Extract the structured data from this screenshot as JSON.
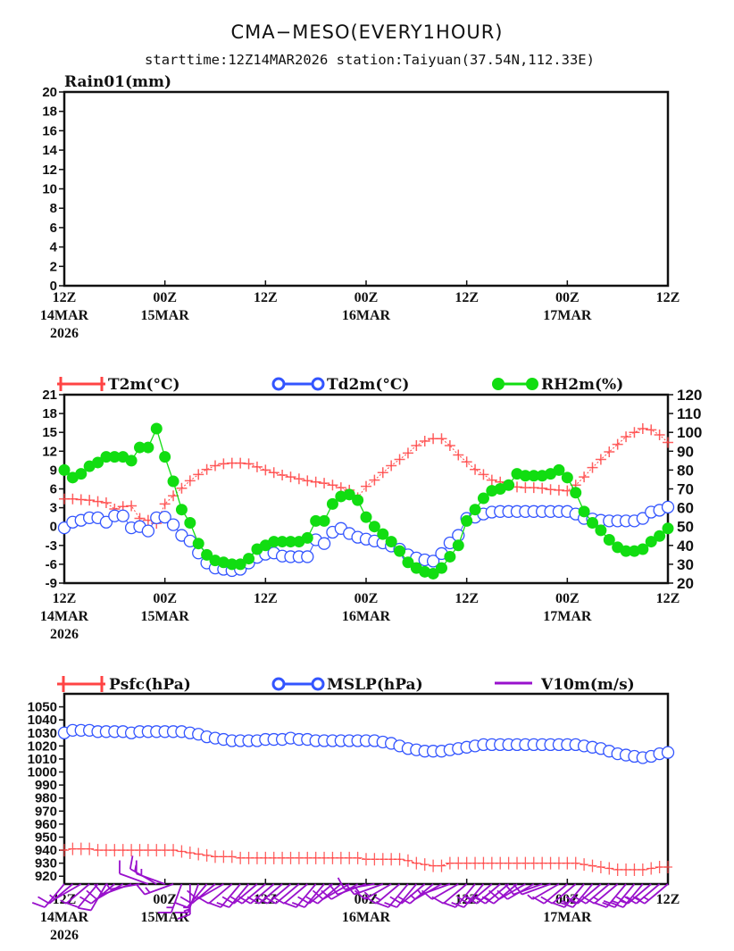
{
  "header": {
    "title": "CMA−MESO(EVERY1HOUR)",
    "subtitle": "starttime:12Z14MAR2026   station:Taiyuan(37.54N,112.33E)"
  },
  "colors": {
    "t2m": "#ff4444",
    "td2m": "#3355ff",
    "rh2m": "#11dd11",
    "psfc": "#ff4444",
    "mslp": "#3355ff",
    "wind": "#9911cc"
  },
  "chart_data": [
    {
      "type": "line",
      "title": "Rain01(mm)",
      "hours": 72,
      "ylim": [
        0,
        20
      ],
      "yticks": [
        "0",
        "2",
        "4",
        "6",
        "8",
        "10",
        "12",
        "14",
        "16",
        "18",
        "20"
      ],
      "x_ticks": [
        [
          "12Z",
          "14MAR",
          "2026"
        ],
        [
          "00Z",
          "15MAR",
          ""
        ],
        [
          "12Z",
          "",
          ""
        ],
        [
          "00Z",
          "16MAR",
          ""
        ],
        [
          "12Z",
          "",
          ""
        ],
        [
          "00Z",
          "17MAR",
          ""
        ],
        [
          "12Z",
          "",
          ""
        ]
      ],
      "series": []
    },
    {
      "type": "line",
      "hours": 72,
      "ylim": [
        -9,
        21
      ],
      "yticks": [
        "-9",
        "-6",
        "-3",
        "0",
        "3",
        "6",
        "9",
        "12",
        "15",
        "18",
        "21"
      ],
      "ylim_right": [
        20,
        120
      ],
      "yticks_right": [
        "20",
        "30",
        "40",
        "50",
        "60",
        "70",
        "80",
        "90",
        "100",
        "110",
        "120"
      ],
      "x_ticks": [
        [
          "12Z",
          "14MAR",
          "2026"
        ],
        [
          "00Z",
          "15MAR",
          ""
        ],
        [
          "12Z",
          "",
          ""
        ],
        [
          "00Z",
          "16MAR",
          ""
        ],
        [
          "12Z",
          "",
          ""
        ],
        [
          "00Z",
          "17MAR",
          ""
        ],
        [
          "12Z",
          "",
          ""
        ]
      ],
      "series": [
        {
          "name": "T2m(°C)",
          "axis": "left",
          "marker": "plus",
          "values": [
            4.4,
            4.4,
            4.3,
            4.2,
            4.0,
            3.8,
            2.8,
            3.2,
            3.3,
            1.3,
            1.0,
            0.5,
            3.6,
            4.9,
            6.1,
            7.3,
            8.3,
            9.1,
            9.7,
            10.0,
            10.1,
            10.1,
            10.0,
            9.5,
            9.0,
            8.6,
            8.2,
            7.9,
            7.6,
            7.3,
            7.1,
            6.9,
            6.6,
            6.2,
            5.8,
            4.6,
            6.4,
            7.4,
            8.6,
            9.7,
            10.7,
            11.7,
            12.9,
            13.6,
            14.0,
            14.0,
            12.9,
            11.4,
            10.3,
            9.1,
            8.3,
            7.4,
            7.1,
            6.6,
            6.3,
            6.2,
            6.2,
            6.1,
            5.9,
            5.8,
            5.7,
            6.6,
            7.9,
            9.4,
            10.7,
            11.9,
            13.1,
            14.3,
            15.0,
            15.6,
            15.4,
            14.6,
            13.4
          ]
        },
        {
          "name": "Td2m(°C)",
          "axis": "left",
          "marker": "circle",
          "values": [
            -0.2,
            0.7,
            1.0,
            1.4,
            1.4,
            0.7,
            1.7,
            1.7,
            -0.2,
            0.0,
            -0.7,
            1.4,
            1.5,
            0.3,
            -1.4,
            -2.3,
            -4.2,
            -5.8,
            -6.6,
            -6.8,
            -7.0,
            -6.8,
            -5.8,
            -4.9,
            -4.4,
            -4.2,
            -4.7,
            -4.8,
            -4.8,
            -4.8,
            -2.1,
            -2.7,
            -0.9,
            -0.3,
            -1.1,
            -1.7,
            -2.0,
            -2.3,
            -2.6,
            -3.1,
            -3.6,
            -4.5,
            -5.0,
            -5.3,
            -5.5,
            -4.3,
            -2.6,
            -1.4,
            1.3,
            1.5,
            2.0,
            2.3,
            2.4,
            2.4,
            2.4,
            2.4,
            2.4,
            2.4,
            2.4,
            2.4,
            2.4,
            2.0,
            1.3,
            1.2,
            1.0,
            0.9,
            0.9,
            0.9,
            0.9,
            1.3,
            2.3,
            2.6,
            3.1
          ]
        },
        {
          "name": "RH2m(%)",
          "axis": "right",
          "marker": "dot",
          "values": [
            80,
            76,
            78,
            82,
            84,
            87,
            87,
            87,
            85,
            92,
            92,
            102,
            87,
            74,
            59,
            52,
            41,
            35,
            32,
            31,
            30,
            30,
            33,
            38,
            40,
            42,
            42,
            42,
            42,
            44,
            53,
            53,
            62,
            66,
            67,
            64,
            55,
            50,
            46,
            42,
            37,
            31,
            28,
            26,
            25,
            28,
            34,
            40,
            53,
            59,
            65,
            69,
            70,
            72,
            78,
            77,
            77,
            77,
            78,
            80,
            76,
            68,
            58,
            52,
            48,
            43,
            39,
            37,
            37,
            38,
            42,
            45,
            49
          ]
        }
      ]
    },
    {
      "type": "line",
      "hours": 72,
      "ylim": [
        914,
        1060
      ],
      "yticks": [
        "920",
        "930",
        "940",
        "950",
        "960",
        "970",
        "980",
        "990",
        "1000",
        "1010",
        "1020",
        "1030",
        "1040",
        "1050"
      ],
      "x_ticks": [
        [
          "12Z",
          "14MAR",
          "2026"
        ],
        [
          "00Z",
          "15MAR",
          ""
        ],
        [
          "12Z",
          "",
          ""
        ],
        [
          "00Z",
          "16MAR",
          ""
        ],
        [
          "12Z",
          "",
          ""
        ],
        [
          "00Z",
          "17MAR",
          ""
        ],
        [
          "12Z",
          "",
          ""
        ]
      ],
      "series": [
        {
          "name": "Psfc(hPa)",
          "marker": "plus",
          "values": [
            940,
            941,
            941,
            941,
            940,
            940,
            940,
            940,
            940,
            940,
            940,
            940,
            940,
            940,
            939,
            938,
            937,
            936,
            935,
            935,
            935,
            934,
            934,
            934,
            934,
            934,
            934,
            934,
            934,
            934,
            934,
            934,
            934,
            934,
            934,
            934,
            933,
            933,
            933,
            933,
            933,
            932,
            930,
            929,
            928,
            928,
            930,
            930,
            930,
            930,
            930,
            930,
            930,
            930,
            930,
            930,
            930,
            930,
            930,
            930,
            930,
            930,
            929,
            928,
            927,
            926,
            925,
            925,
            925,
            925,
            926,
            927,
            927
          ]
        },
        {
          "name": "MSLP(hPa)",
          "marker": "circle",
          "values": [
            1030,
            1032,
            1032,
            1032,
            1031,
            1031,
            1031,
            1031,
            1030,
            1031,
            1031,
            1031,
            1031,
            1031,
            1031,
            1030,
            1029,
            1027,
            1026,
            1025,
            1024,
            1024,
            1024,
            1024,
            1025,
            1025,
            1025,
            1026,
            1025,
            1025,
            1024,
            1024,
            1024,
            1024,
            1024,
            1024,
            1024,
            1024,
            1023,
            1022,
            1020,
            1018,
            1017,
            1016,
            1016,
            1016,
            1017,
            1018,
            1019,
            1020,
            1021,
            1021,
            1021,
            1021,
            1021,
            1021,
            1021,
            1021,
            1021,
            1021,
            1021,
            1021,
            1020,
            1019,
            1018,
            1016,
            1014,
            1013,
            1012,
            1011,
            1012,
            1014,
            1015
          ]
        },
        {
          "name": "V10m(m/s)",
          "marker": "barb",
          "speed": [
            4,
            4,
            3,
            3,
            4,
            5,
            5,
            4,
            4,
            3,
            5,
            7,
            6,
            6,
            7,
            7,
            6,
            5,
            4,
            4,
            4,
            5,
            5,
            5,
            5,
            5,
            5,
            5,
            5,
            5,
            4,
            4,
            4,
            5,
            5,
            5,
            5,
            5,
            6,
            6,
            6,
            5,
            5,
            4,
            4,
            3,
            3,
            4,
            4,
            5,
            5,
            6,
            6,
            6,
            5,
            5,
            4,
            4,
            4,
            3,
            4,
            5,
            6,
            6,
            5,
            5,
            6,
            6,
            6,
            7,
            7,
            6,
            6
          ],
          "direction": [
            220,
            230,
            240,
            230,
            220,
            210,
            230,
            240,
            250,
            260,
            290,
            300,
            290,
            250,
            200,
            180,
            200,
            220,
            230,
            240,
            230,
            220,
            220,
            230,
            230,
            230,
            230,
            230,
            230,
            230,
            220,
            220,
            230,
            230,
            240,
            240,
            250,
            260,
            250,
            240,
            230,
            220,
            220,
            230,
            230,
            240,
            250,
            240,
            230,
            220,
            220,
            230,
            230,
            230,
            230,
            240,
            240,
            250,
            250,
            240,
            230,
            230,
            220,
            220,
            230,
            230,
            230,
            220,
            220,
            220,
            230,
            230,
            230
          ]
        }
      ]
    }
  ]
}
